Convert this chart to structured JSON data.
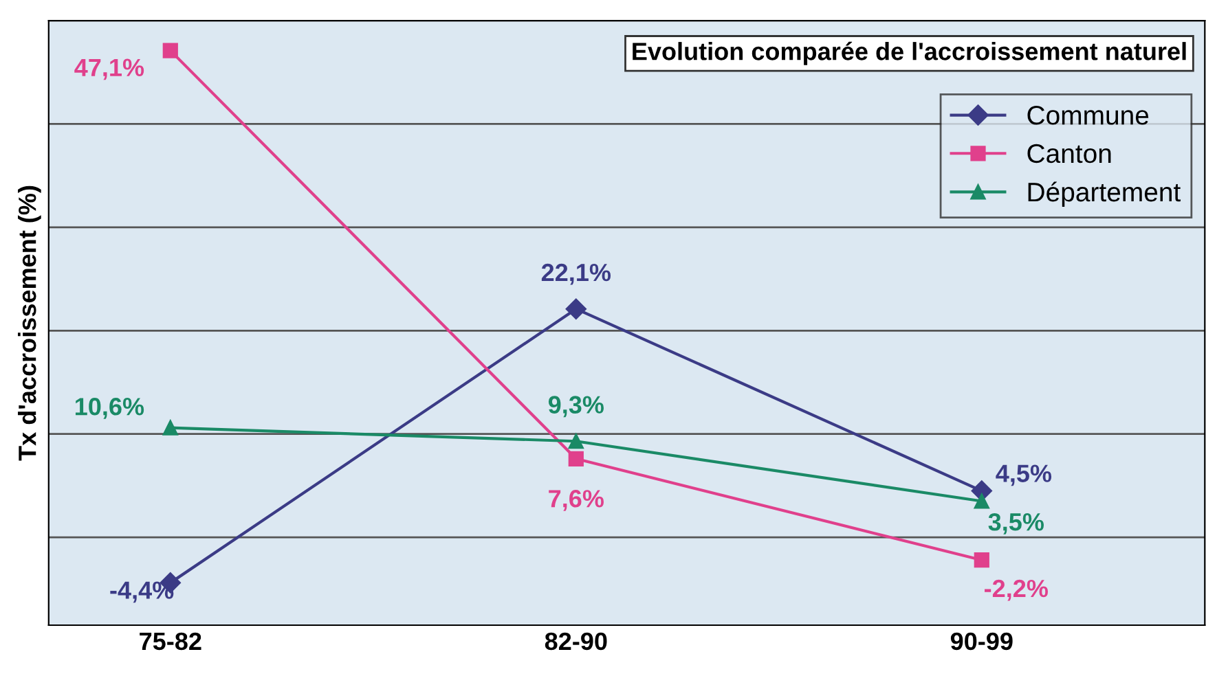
{
  "chart_data": {
    "type": "line",
    "title": "Evolution comparée de l'accroissement naturel",
    "ylabel": "Tx d'accroissement (%)",
    "categories": [
      "75-82",
      "82-90",
      "90-99"
    ],
    "series": [
      {
        "name": "Commune",
        "color": "#3b3b86",
        "marker": "diamond",
        "values": [
          -4.4,
          22.1,
          4.5
        ],
        "value_labels": [
          "-4,4%",
          "22,1%",
          "4,5%"
        ]
      },
      {
        "name": "Canton",
        "color": "#e0408c",
        "marker": "square",
        "values": [
          47.1,
          7.6,
          -2.2
        ],
        "value_labels": [
          "47,1%",
          "7,6%",
          "-2,2%"
        ]
      },
      {
        "name": "Département",
        "color": "#1a8a66",
        "marker": "triangle",
        "values": [
          10.6,
          9.3,
          3.5
        ],
        "value_labels": [
          "10,6%",
          "9,3%",
          "3,5%"
        ]
      }
    ],
    "ylim": [
      -8.5,
      50
    ],
    "yticks": [
      {
        "value": 0,
        "label": null
      },
      {
        "value": 10,
        "label": null
      },
      {
        "value": 20,
        "label": null
      },
      {
        "value": 30,
        "label": null
      },
      {
        "value": 40,
        "label": null
      },
      {
        "value": 50,
        "label": null
      }
    ],
    "tick_labels": "x",
    "grid": "y",
    "legend": "top right",
    "line_style": "solid"
  }
}
